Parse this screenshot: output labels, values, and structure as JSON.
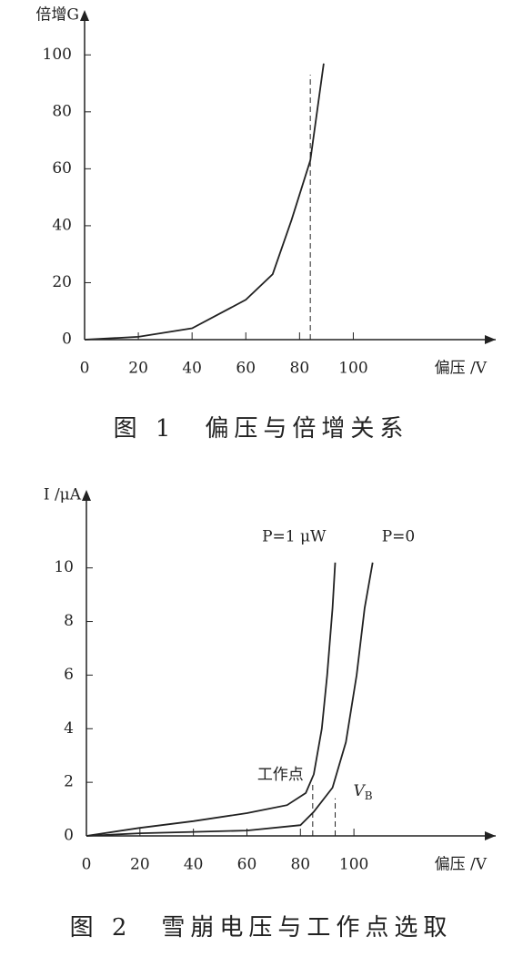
{
  "chart_data": [
    {
      "type": "line",
      "caption": "图 1　偏压与倍增关系",
      "x_label": "偏压 /V",
      "y_label": "倍增G",
      "xlim": [
        0,
        153
      ],
      "ylim": [
        0,
        110
      ],
      "xticks": [
        0,
        20,
        40,
        60,
        80,
        100
      ],
      "yticks": [
        0,
        20,
        40,
        60,
        80,
        100
      ],
      "series": [
        {
          "color": "#222222",
          "x": [
            0,
            20,
            40,
            60,
            70,
            77,
            84,
            89
          ],
          "values": [
            0,
            1,
            4,
            14,
            23,
            42,
            63,
            97
          ]
        }
      ],
      "annotations": [
        {
          "x": 84,
          "y": 93
        }
      ]
    },
    {
      "type": "line",
      "caption": "图 2　雪崩电压与工作点选取",
      "x_label": "偏压 /V",
      "y_label": "I /μA",
      "xlim": [
        0,
        153
      ],
      "ylim": [
        0,
        12.3
      ],
      "xticks": [
        0,
        20,
        40,
        60,
        80,
        100
      ],
      "yticks": [
        0,
        2,
        4,
        6,
        8,
        10
      ],
      "series": [
        {
          "name": "P=1 μW",
          "color": "#222222",
          "x": [
            0,
            20,
            40,
            60,
            75,
            82,
            85,
            88,
            90,
            92,
            93
          ],
          "values": [
            0,
            0.3,
            0.55,
            0.85,
            1.15,
            1.6,
            2.3,
            4,
            6,
            8.5,
            10.2
          ]
        },
        {
          "name": "P=0",
          "color": "#222222",
          "x": [
            0,
            20,
            40,
            60,
            80,
            85,
            92,
            97,
            101,
            104,
            107
          ],
          "values": [
            0,
            0.1,
            0.15,
            0.2,
            0.4,
            0.9,
            1.8,
            3.5,
            6,
            8.5,
            10.2
          ]
        }
      ],
      "annotations": [
        {
          "text": "工作点",
          "x": 84.6,
          "y": 2
        },
        {
          "text": "V",
          "sub": "B",
          "x": 93,
          "y": 1.4
        }
      ]
    }
  ]
}
